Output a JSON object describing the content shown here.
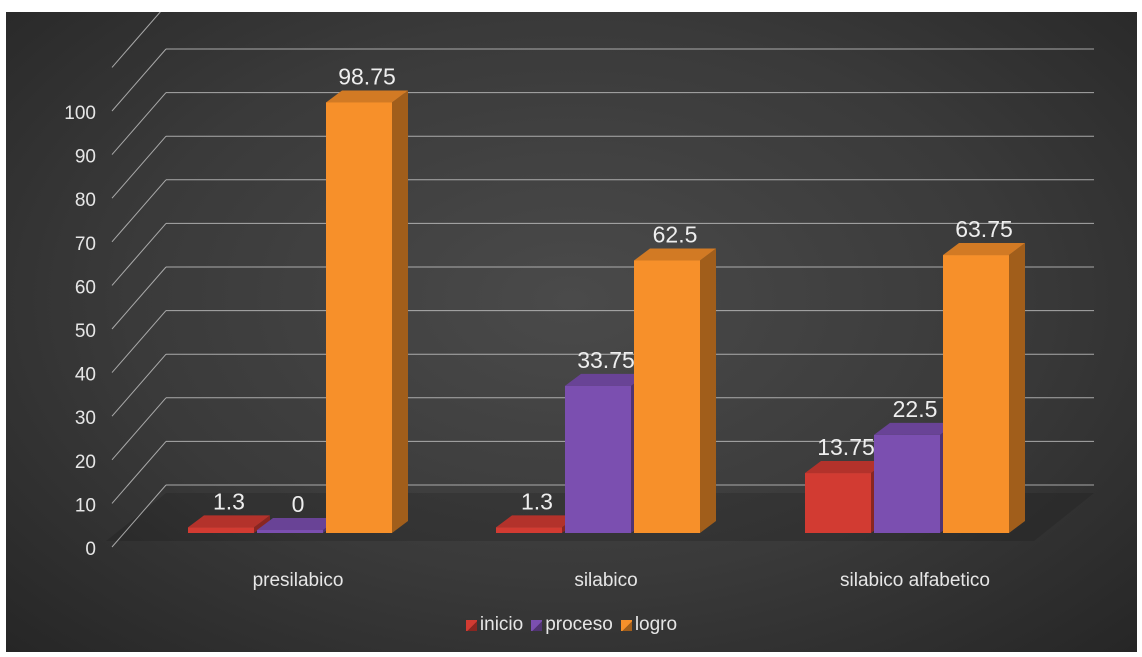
{
  "chart_data": {
    "type": "bar",
    "categories": [
      "presilabico",
      "silabico",
      "silabico alfabetico"
    ],
    "series": [
      {
        "name": "inicio",
        "values": [
          1.3,
          1.3,
          13.75
        ],
        "color": "#d23b32"
      },
      {
        "name": "proceso",
        "values": [
          0,
          33.75,
          22.5
        ],
        "color": "#7b4fb0"
      },
      {
        "name": "logro",
        "values": [
          98.75,
          62.5,
          63.75
        ],
        "color": "#f7902a"
      }
    ],
    "data_labels": [
      [
        "1.3",
        "0",
        "98.75"
      ],
      [
        "1.3",
        "33.75",
        "62.5"
      ],
      [
        "13.75",
        "22.5",
        "63.75"
      ]
    ],
    "y_ticks": [
      "0",
      "10",
      "20",
      "30",
      "40",
      "50",
      "60",
      "70",
      "80",
      "90",
      "100"
    ],
    "ylim": [
      0,
      110
    ],
    "grid": true,
    "legend_position": "bottom",
    "style": "3d-clustered-column",
    "background": "#3d3d3d"
  }
}
